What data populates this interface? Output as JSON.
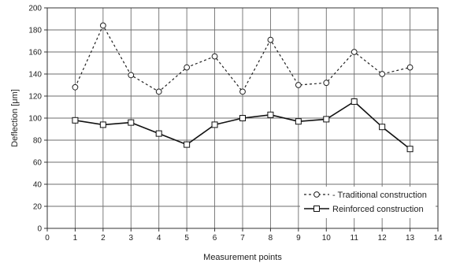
{
  "chart_data": {
    "type": "line",
    "title": "",
    "xlabel": "Measurement points",
    "ylabel": "Deflection  [μm]",
    "xlim": [
      0,
      14
    ],
    "ylim": [
      0,
      200
    ],
    "x_ticks": [
      0,
      1,
      2,
      3,
      4,
      5,
      6,
      7,
      8,
      9,
      10,
      11,
      12,
      13,
      14
    ],
    "y_ticks": [
      0,
      20,
      40,
      60,
      80,
      100,
      120,
      140,
      160,
      180,
      200
    ],
    "grid": true,
    "legend_position": "bottom-right",
    "series": [
      {
        "name": "- Traditional construction",
        "line_style": "dashed",
        "marker": "circle",
        "color": "#222222",
        "x": [
          1,
          2,
          3,
          4,
          5,
          6,
          7,
          8,
          9,
          10,
          11,
          12,
          13
        ],
        "values": [
          128,
          184,
          139,
          124,
          146,
          156,
          124,
          171,
          130,
          132,
          160,
          140,
          146
        ]
      },
      {
        "name": "Reinforced construction",
        "line_style": "solid",
        "marker": "square",
        "color": "#111111",
        "x": [
          1,
          2,
          3,
          4,
          5,
          6,
          7,
          8,
          9,
          10,
          11,
          12,
          13
        ],
        "values": [
          98,
          94,
          96,
          86,
          76,
          94,
          100,
          103,
          97,
          99,
          115,
          92,
          72
        ]
      }
    ]
  }
}
